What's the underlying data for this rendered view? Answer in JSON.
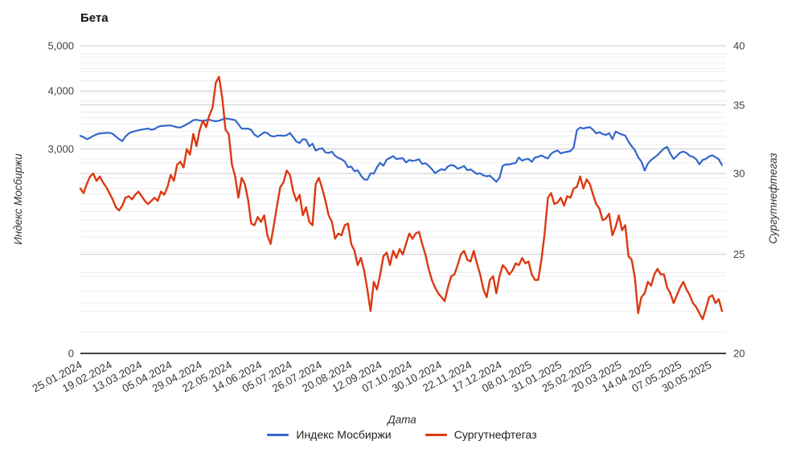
{
  "chart_data": {
    "type": "line",
    "title": "Бета",
    "grid": {
      "minor_color": "#ececec",
      "major_color": "#c9c9c9",
      "baseline_color": "#424242"
    },
    "legend_position": "bottom",
    "x_axis": {
      "title": "Дата",
      "tick_labels": [
        "25.01.2024",
        "19.02.2024",
        "13.03.2024",
        "05.04.2024",
        "29.04.2024",
        "22.05.2024",
        "14.06.2024",
        "05.07.2024",
        "26.07.2024",
        "20.08.2024",
        "12.09.2024",
        "07.10.2024",
        "30.10.2024",
        "22.11.2024",
        "17.12.2024",
        "08.01.2025",
        "31.01.2025",
        "25.02.2025",
        "20.03.2025",
        "14.04.2025",
        "07.05.2025",
        "30.05.2025"
      ]
    },
    "y_axis_left": {
      "title": "Индекс Мосбиржи",
      "scale": "log",
      "max": 5000,
      "baseline_value": 1090,
      "ticks": [
        {
          "label": "5,000",
          "value": 5000
        },
        {
          "label": "4,000",
          "value": 4000
        },
        {
          "label": "3,000",
          "value": 3000
        },
        {
          "label": "0",
          "value": 0
        }
      ],
      "majors": [
        5000,
        4000,
        3000
      ],
      "minor_from": 1400,
      "minor_to": 4800,
      "minor_step": 200
    },
    "y_axis_right": {
      "title": "Сургутнефтегаз",
      "scale": "log",
      "max": 40,
      "min": 20,
      "ticks": [
        {
          "label": "40",
          "value": 40
        },
        {
          "label": "35",
          "value": 35
        },
        {
          "label": "30",
          "value": 30
        },
        {
          "label": "25",
          "value": 25
        },
        {
          "label": "20",
          "value": 20
        }
      ],
      "majors": [
        40,
        35,
        30,
        25
      ],
      "minor_from": 21,
      "minor_to": 39,
      "minor_step": 1
    },
    "series": [
      {
        "name": "Индекс Мосбиржи",
        "color": "#3366cc",
        "axis": "left",
        "stroke_width": 2.2,
        "values": [
          3200,
          3180,
          3150,
          3170,
          3200,
          3225,
          3240,
          3245,
          3248,
          3250,
          3235,
          3190,
          3150,
          3120,
          3190,
          3240,
          3265,
          3278,
          3290,
          3302,
          3310,
          3318,
          3300,
          3310,
          3345,
          3360,
          3364,
          3368,
          3370,
          3355,
          3340,
          3335,
          3360,
          3390,
          3420,
          3460,
          3465,
          3455,
          3445,
          3460,
          3468,
          3450,
          3442,
          3450,
          3470,
          3490,
          3480,
          3470,
          3460,
          3390,
          3320,
          3315,
          3320,
          3295,
          3220,
          3185,
          3220,
          3258,
          3245,
          3200,
          3190,
          3205,
          3208,
          3200,
          3212,
          3245,
          3180,
          3110,
          3090,
          3150,
          3140,
          3040,
          3080,
          2975,
          3000,
          3010,
          2950,
          2940,
          2960,
          2900,
          2870,
          2850,
          2820,
          2740,
          2750,
          2685,
          2700,
          2630,
          2580,
          2575,
          2660,
          2655,
          2740,
          2800,
          2760,
          2845,
          2870,
          2895,
          2855,
          2860,
          2865,
          2805,
          2840,
          2828,
          2835,
          2850,
          2785,
          2795,
          2760,
          2715,
          2660,
          2690,
          2715,
          2700,
          2750,
          2770,
          2760,
          2720,
          2735,
          2758,
          2700,
          2712,
          2680,
          2650,
          2660,
          2632,
          2620,
          2628,
          2590,
          2550,
          2600,
          2760,
          2780,
          2778,
          2790,
          2800,
          2875,
          2830,
          2850,
          2855,
          2815,
          2875,
          2885,
          2905,
          2880,
          2862,
          2930,
          2960,
          2975,
          2935,
          2950,
          2958,
          2970,
          3020,
          3290,
          3335,
          3320,
          3332,
          3340,
          3300,
          3240,
          3260,
          3230,
          3215,
          3245,
          3150,
          3270,
          3245,
          3220,
          3205,
          3110,
          3040,
          2980,
          2880,
          2820,
          2695,
          2790,
          2840,
          2875,
          2910,
          2960,
          3005,
          3030,
          2930,
          2855,
          2900,
          2945,
          2960,
          2940,
          2900,
          2885,
          2850,
          2780,
          2840,
          2855,
          2890,
          2905,
          2880,
          2850,
          2770
        ]
      },
      {
        "name": "Сургутнефтегаз",
        "color": "#dc3912",
        "axis": "right",
        "stroke_width": 2.4,
        "values": [
          29.0,
          28.7,
          29.3,
          29.8,
          30.0,
          29.5,
          29.8,
          29.4,
          29.1,
          28.7,
          28.3,
          27.8,
          27.6,
          27.9,
          28.4,
          28.5,
          28.3,
          28.6,
          28.8,
          28.5,
          28.2,
          28.0,
          28.2,
          28.4,
          28.2,
          28.8,
          28.6,
          29.1,
          29.9,
          29.5,
          30.6,
          30.8,
          30.4,
          31.7,
          31.3,
          32.8,
          31.9,
          33.1,
          33.8,
          33.3,
          34.2,
          34.8,
          36.8,
          37.3,
          35.6,
          33.1,
          32.8,
          30.6,
          29.8,
          28.4,
          29.7,
          29.3,
          28.3,
          26.8,
          26.7,
          27.2,
          26.9,
          27.3,
          26.1,
          25.6,
          26.7,
          27.9,
          29.1,
          29.4,
          30.2,
          29.9,
          28.8,
          28.2,
          28.6,
          27.3,
          27.8,
          26.9,
          26.7,
          29.3,
          29.7,
          29.0,
          28.2,
          27.3,
          26.9,
          25.9,
          26.2,
          26.1,
          26.7,
          26.8,
          25.6,
          25.2,
          24.4,
          24.8,
          24.1,
          23.1,
          22.0,
          23.5,
          23.1,
          23.9,
          24.9,
          25.1,
          24.4,
          25.2,
          24.8,
          25.3,
          25.0,
          25.6,
          26.2,
          25.9,
          26.2,
          26.3,
          25.6,
          25.0,
          24.2,
          23.6,
          23.2,
          22.9,
          22.7,
          22.5,
          23.2,
          23.8,
          23.9,
          24.4,
          25.0,
          25.2,
          24.7,
          24.6,
          25.2,
          24.5,
          23.9,
          23.1,
          22.7,
          23.6,
          23.8,
          22.9,
          23.8,
          24.4,
          24.2,
          23.9,
          24.1,
          24.5,
          24.4,
          24.8,
          24.5,
          24.6,
          23.9,
          23.6,
          23.6,
          24.7,
          26.2,
          28.4,
          28.7,
          28.0,
          28.1,
          28.4,
          27.9,
          28.5,
          28.4,
          29.0,
          29.1,
          29.8,
          29.0,
          29.6,
          29.3,
          28.6,
          28.0,
          27.7,
          27.0,
          27.1,
          27.4,
          26.1,
          26.6,
          27.3,
          26.4,
          26.7,
          24.9,
          24.7,
          23.7,
          21.9,
          22.7,
          22.9,
          23.5,
          23.3,
          23.9,
          24.2,
          23.9,
          23.9,
          23.2,
          22.9,
          22.4,
          22.8,
          23.2,
          23.5,
          23.1,
          22.8,
          22.4,
          22.2,
          21.9,
          21.6,
          22.1,
          22.7,
          22.8,
          22.4,
          22.6,
          22.0
        ]
      }
    ]
  }
}
